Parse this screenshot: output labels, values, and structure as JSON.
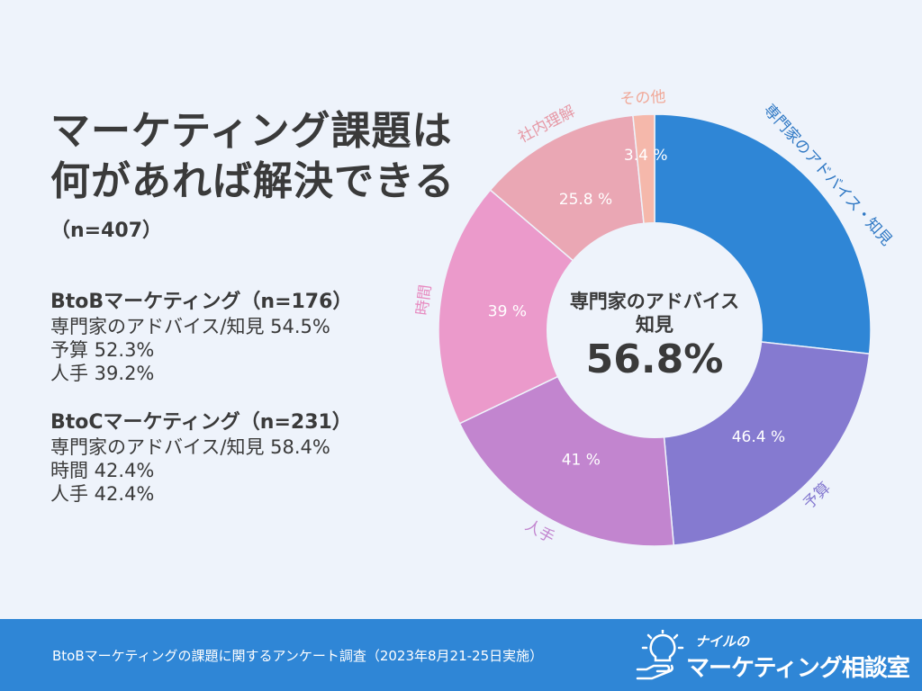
{
  "title": {
    "line1": "マーケティング課題は",
    "line2": "何があれば解決できる"
  },
  "total_n": "（n=407）",
  "segments": {
    "b2b": {
      "heading": "BtoBマーケティング（n=176）",
      "lines": [
        "専門家のアドバイス/知見 54.5%",
        "予算 52.3%",
        "人手 39.2%"
      ]
    },
    "b2c": {
      "heading": "BtoCマーケティング（n=231）",
      "lines": [
        "専門家のアドバイス/知見 58.4%",
        "時間 42.4%",
        "人手 42.4%"
      ]
    }
  },
  "center": {
    "line1": "専門家のアドバイス",
    "line2": "知見",
    "value": "56.8%"
  },
  "footer": {
    "note": "BtoBマーケティングの課題に関するアンケート調査（2023年8月21-25日実施）",
    "logo_small": "ナイルの",
    "logo_main": "マーケティング相談室"
  },
  "chart_data": {
    "type": "pie",
    "donut": true,
    "start": "top",
    "direction": "clockwise",
    "slices": [
      {
        "name": "専門家のアドバイス・知見",
        "value": 56.8,
        "label": "",
        "color": "#2f86d6",
        "name_color": "#2f78c4"
      },
      {
        "name": "予算",
        "value": 46.4,
        "label": "46.4 %",
        "color": "#857ad0",
        "name_color": "#857ad0"
      },
      {
        "name": "人手",
        "value": 41,
        "label": "41 %",
        "color": "#c285cf",
        "name_color": "#c285cf"
      },
      {
        "name": "時間",
        "value": 39,
        "label": "39 %",
        "color": "#eb9acb",
        "name_color": "#e78ac0"
      },
      {
        "name": "社内理解",
        "value": 25.8,
        "label": "25.8 %",
        "color": "#eaa7b4",
        "name_color": "#e699a6"
      },
      {
        "name": "その他",
        "value": 3.4,
        "label": "3.4 %",
        "color": "#f5b8ab",
        "name_color": "#f0a898"
      }
    ]
  },
  "colors": {
    "background": "#eef3fb",
    "footer": "#2f86d6",
    "text": "#3a3a3a"
  }
}
